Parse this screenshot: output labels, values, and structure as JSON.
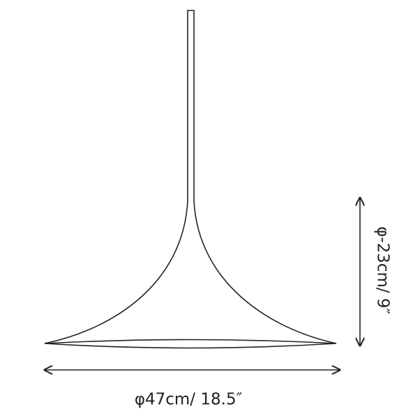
{
  "dimensions": {
    "width": "φ47cm/ 18.5″",
    "height": "φ-23cm/ 9″"
  }
}
